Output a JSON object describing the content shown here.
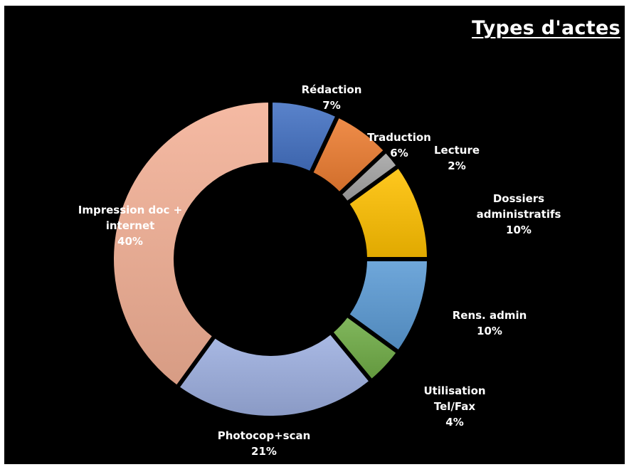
{
  "chart_data": {
    "type": "pie",
    "variant": "donut",
    "title": "Types d'actes",
    "legend": "none",
    "categories": [
      "Rédaction",
      "Traduction",
      "Lecture",
      "Dossiers administratifs",
      "Rens. admin",
      "Utilisation Tel/Fax",
      "Photocop+scan",
      "Impression doc + internet"
    ],
    "values": [
      7,
      6,
      2,
      10,
      10,
      4,
      21,
      40
    ],
    "value_labels": [
      "7%",
      "6%",
      "2%",
      "10%",
      "10%",
      "4%",
      "21%",
      "40%"
    ],
    "category_label_lines": [
      [
        "Rédaction"
      ],
      [
        "Traduction"
      ],
      [
        "Lecture"
      ],
      [
        "Dossiers",
        "administratifs"
      ],
      [
        "Rens. admin"
      ],
      [
        "Utilisation",
        "Tel/Fax"
      ],
      [
        "Photocop+scan"
      ],
      [
        "Impression doc +",
        "internet"
      ]
    ],
    "colors": [
      "#4472c4",
      "#ed7d31",
      "#a5a5a5",
      "#ffc000",
      "#5b9bd5",
      "#70ad47",
      "#9dafe0",
      "#f4b196"
    ],
    "background": "#000000",
    "label_color": "#ffffff"
  }
}
